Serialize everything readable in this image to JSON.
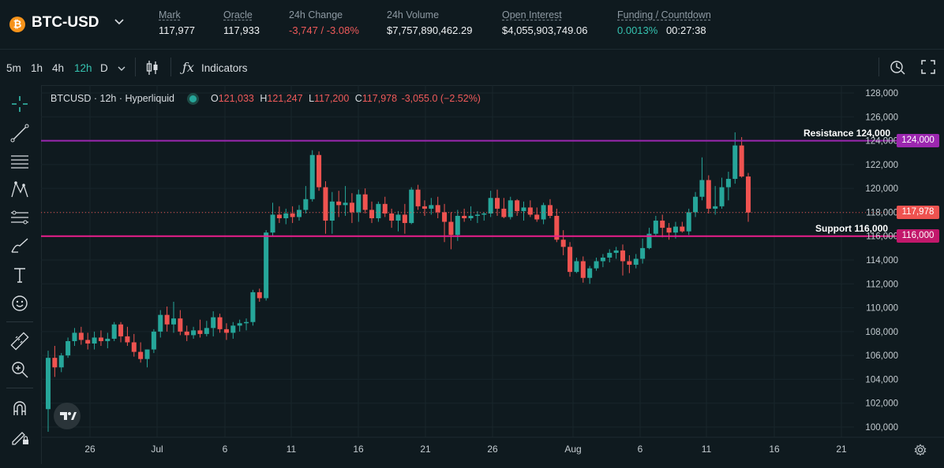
{
  "header": {
    "logo_glyph": "₿",
    "symbol": "BTC-USD",
    "stats": [
      {
        "label": "Mark",
        "value": "117,977"
      },
      {
        "label": "Oracle",
        "value": "117,933"
      },
      {
        "label": "24h Change",
        "value": "-3,747 / -3.08%"
      },
      {
        "label": "24h Volume",
        "value": "$7,757,890,462.29"
      },
      {
        "label": "Open Interest",
        "value": "$4,055,903,749.06"
      },
      {
        "label": "Funding / Countdown",
        "value": "0.0013%",
        "value2": "00:27:38"
      }
    ]
  },
  "toolbar": {
    "timeframes": [
      "5m",
      "1h",
      "4h",
      "12h",
      "D"
    ],
    "active_timeframe": "12h",
    "indicators_label": "Indicators"
  },
  "legend": {
    "title": "BTCUSD · 12h · Hyperliquid",
    "o_label": "O",
    "o_value": "121,033",
    "h_label": "H",
    "h_value": "121,247",
    "l_label": "L",
    "l_value": "117,200",
    "c_label": "C",
    "c_value": "117,978",
    "change": "-3,055.0 (−2.52%)"
  },
  "colors": {
    "up": "#26a69a",
    "down": "#ef5350",
    "resistance": "#9c27b0",
    "support": "#e91e8c",
    "accent": "#35c2b0"
  },
  "chart_data": {
    "type": "candlestick",
    "ylim": [
      99000,
      129000
    ],
    "y_ticks": [
      "128,000",
      "126,000",
      "124,000",
      "122,000",
      "120,000",
      "118,000",
      "116,000",
      "114,000",
      "112,000",
      "110,000",
      "108,000",
      "106,000",
      "104,000",
      "102,000",
      "100,000"
    ],
    "x_ticks": [
      "26",
      "Jul",
      "6",
      "11",
      "16",
      "21",
      "26",
      "Aug",
      "6",
      "11",
      "16",
      "21"
    ],
    "resistance": {
      "label": "Resistance 124,000",
      "value": 124000,
      "tag": "124,000"
    },
    "support": {
      "label": "Support 116,000",
      "value": 116000,
      "tag": "116,000"
    },
    "last_price": {
      "value": 117978,
      "tag": "117,978"
    },
    "candles": [
      [
        101500,
        106400,
        99600,
        105800
      ],
      [
        105800,
        106800,
        104200,
        105000
      ],
      [
        105000,
        106200,
        104600,
        106000
      ],
      [
        106000,
        107500,
        105800,
        107200
      ],
      [
        107200,
        108300,
        106800,
        107900
      ],
      [
        107900,
        108400,
        106900,
        107300
      ],
      [
        107300,
        107900,
        106500,
        107000
      ],
      [
        107000,
        108000,
        106500,
        107500
      ],
      [
        107500,
        108100,
        106800,
        107200
      ],
      [
        107200,
        107900,
        106600,
        107400
      ],
      [
        107400,
        108800,
        107200,
        108600
      ],
      [
        108600,
        108800,
        107100,
        107600
      ],
      [
        107600,
        108400,
        106800,
        107100
      ],
      [
        107100,
        107800,
        105900,
        106300
      ],
      [
        106300,
        107100,
        105400,
        105700
      ],
      [
        105700,
        106500,
        105000,
        106500
      ],
      [
        106500,
        108200,
        106200,
        108000
      ],
      [
        108000,
        109800,
        107500,
        109400
      ],
      [
        109400,
        110100,
        108000,
        108600
      ],
      [
        108600,
        110500,
        107900,
        109100
      ],
      [
        109100,
        109800,
        107700,
        108000
      ],
      [
        108000,
        108500,
        107200,
        107700
      ],
      [
        107700,
        108400,
        107400,
        108100
      ],
      [
        108100,
        109000,
        107500,
        107800
      ],
      [
        107800,
        108900,
        107600,
        108300
      ],
      [
        108300,
        109700,
        107600,
        109200
      ],
      [
        109200,
        109500,
        107900,
        108200
      ],
      [
        108200,
        108700,
        107300,
        107900
      ],
      [
        107900,
        108800,
        107400,
        108500
      ],
      [
        108500,
        109000,
        108000,
        108700
      ],
      [
        108700,
        109100,
        108100,
        108800
      ],
      [
        108800,
        111500,
        108500,
        111300
      ],
      [
        111300,
        111600,
        110500,
        110800
      ],
      [
        110800,
        116500,
        110600,
        116300
      ],
      [
        116300,
        118800,
        116000,
        117800
      ],
      [
        117800,
        118500,
        117100,
        117500
      ],
      [
        117500,
        118300,
        117000,
        117900
      ],
      [
        117900,
        118500,
        117100,
        117600
      ],
      [
        117600,
        118600,
        117300,
        118200
      ],
      [
        118200,
        120200,
        117900,
        119100
      ],
      [
        119100,
        123200,
        118900,
        122800
      ],
      [
        122800,
        123100,
        119800,
        120100
      ],
      [
        120100,
        120600,
        116200,
        117300
      ],
      [
        117300,
        119700,
        116200,
        118900
      ],
      [
        118900,
        119800,
        117600,
        118600
      ],
      [
        118600,
        120200,
        117700,
        118800
      ],
      [
        118800,
        119600,
        117100,
        118000
      ],
      [
        118000,
        119900,
        117200,
        119500
      ],
      [
        119500,
        120000,
        117900,
        118200
      ],
      [
        118200,
        118900,
        117100,
        117500
      ],
      [
        117500,
        118900,
        117200,
        118700
      ],
      [
        118700,
        119300,
        117600,
        117900
      ],
      [
        117900,
        118300,
        116700,
        117300
      ],
      [
        117300,
        118100,
        116400,
        117800
      ],
      [
        117800,
        118700,
        116200,
        117100
      ],
      [
        117100,
        120100,
        117000,
        119900
      ],
      [
        119900,
        120300,
        118200,
        118500
      ],
      [
        118500,
        119000,
        117700,
        118300
      ],
      [
        118300,
        119200,
        117800,
        118600
      ],
      [
        118600,
        119300,
        117500,
        118000
      ],
      [
        118000,
        118700,
        115500,
        117200
      ],
      [
        117200,
        118000,
        114900,
        116100
      ],
      [
        116100,
        118200,
        115600,
        117700
      ],
      [
        117700,
        118300,
        117200,
        117500
      ],
      [
        117500,
        118500,
        117300,
        117700
      ],
      [
        117700,
        118100,
        117100,
        117800
      ],
      [
        117800,
        118000,
        117300,
        117900
      ],
      [
        117900,
        119800,
        117600,
        119200
      ],
      [
        119200,
        119900,
        117700,
        118300
      ],
      [
        118300,
        119200,
        117500,
        117600
      ],
      [
        117600,
        119300,
        117400,
        119000
      ],
      [
        119000,
        119100,
        117700,
        118100
      ],
      [
        118100,
        118900,
        117300,
        118400
      ],
      [
        118400,
        119000,
        117600,
        117800
      ],
      [
        117800,
        118400,
        117200,
        117400
      ],
      [
        117400,
        118800,
        117000,
        118600
      ],
      [
        118600,
        119100,
        117500,
        117700
      ],
      [
        117700,
        118300,
        115500,
        115700
      ],
      [
        115700,
        116500,
        114400,
        115100
      ],
      [
        115100,
        115500,
        112600,
        113000
      ],
      [
        113000,
        114200,
        112900,
        113900
      ],
      [
        113900,
        114300,
        112100,
        112500
      ],
      [
        112500,
        113500,
        112000,
        113300
      ],
      [
        113300,
        114200,
        113100,
        113900
      ],
      [
        113900,
        114500,
        113400,
        114200
      ],
      [
        114200,
        114900,
        113800,
        114600
      ],
      [
        114600,
        115100,
        114100,
        114800
      ],
      [
        114800,
        115300,
        112700,
        113900
      ],
      [
        113900,
        114400,
        112900,
        113600
      ],
      [
        113600,
        114500,
        113300,
        114100
      ],
      [
        114100,
        115800,
        113700,
        115000
      ],
      [
        115000,
        116700,
        114900,
        116200
      ],
      [
        116200,
        117700,
        116000,
        117300
      ],
      [
        117300,
        117800,
        115900,
        116700
      ],
      [
        116700,
        117100,
        115700,
        116300
      ],
      [
        116300,
        117200,
        115800,
        116800
      ],
      [
        116800,
        117200,
        116300,
        116400
      ],
      [
        116400,
        118300,
        116100,
        118000
      ],
      [
        118000,
        119700,
        117600,
        119300
      ],
      [
        119300,
        122600,
        119000,
        120700
      ],
      [
        120700,
        121100,
        117900,
        118300
      ],
      [
        118300,
        120200,
        117800,
        118500
      ],
      [
        118500,
        120900,
        118300,
        120100
      ],
      [
        120100,
        121400,
        119000,
        120800
      ],
      [
        120800,
        124700,
        120400,
        123600
      ],
      [
        123600,
        124300,
        120900,
        121000
      ],
      [
        121000,
        121300,
        117200,
        117978
      ]
    ]
  },
  "bottom": {
    "gear_label": "settings"
  }
}
